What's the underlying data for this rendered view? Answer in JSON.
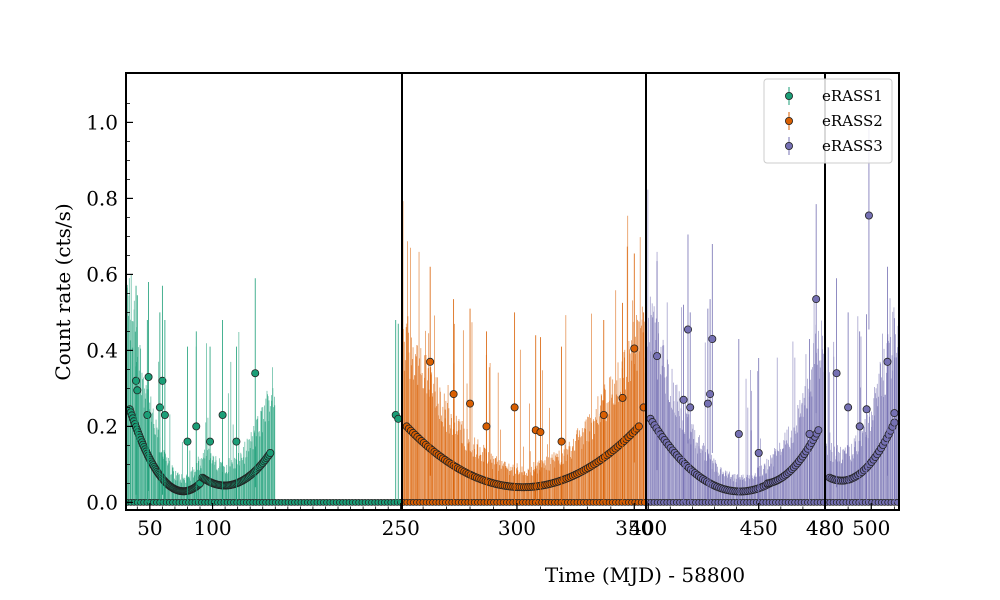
{
  "chart_data": {
    "type": "scatter",
    "xlabel": "Time (MJD) - 58800",
    "ylabel": "Count rate (cts/s)",
    "ylim": [
      -0.02,
      1.13
    ],
    "yticks": [
      0.0,
      0.2,
      0.4,
      0.6,
      0.8,
      1.0
    ],
    "ytick_labels": [
      "0.0",
      "0.2",
      "0.4",
      "0.6",
      "0.8",
      "1.0"
    ],
    "legend_position": "top-right",
    "panels": [
      {
        "series": "eRASS1",
        "xlim": [
          31,
          251
        ],
        "xticks": [
          50,
          100,
          250
        ],
        "xtick_labels": [
          "50",
          "100",
          "250"
        ],
        "color": "#1b9e77",
        "groups": [
          {
            "x_start": 34,
            "x_end": 90,
            "y_start": 0.245,
            "y_mid": 0.055,
            "y_end": 0.05,
            "n": 70
          },
          {
            "x_start": 92,
            "x_end": 146,
            "y_start": 0.065,
            "y_mid": 0.05,
            "y_end": 0.13,
            "n": 55
          }
        ],
        "outliers": [
          {
            "x": 39,
            "y": 0.32
          },
          {
            "x": 40,
            "y": 0.295
          },
          {
            "x": 48,
            "y": 0.23
          },
          {
            "x": 49,
            "y": 0.33
          },
          {
            "x": 58,
            "y": 0.25
          },
          {
            "x": 60,
            "y": 0.32
          },
          {
            "x": 62,
            "y": 0.23
          },
          {
            "x": 80,
            "y": 0.16
          },
          {
            "x": 87,
            "y": 0.2
          },
          {
            "x": 98,
            "y": 0.16
          },
          {
            "x": 108,
            "y": 0.23
          },
          {
            "x": 119,
            "y": 0.16
          },
          {
            "x": 134,
            "y": 0.34
          },
          {
            "x": 246,
            "y": 0.23
          },
          {
            "x": 248,
            "y": 0.22
          }
        ]
      },
      {
        "series": "eRASS2",
        "xlim": [
          251,
          355
        ],
        "xticks": [
          250,
          300,
          350
        ],
        "xtick_labels": [
          "250",
          "300",
          "350"
        ],
        "color": "#d95f02",
        "groups": [
          {
            "x_start": 253,
            "x_end": 352,
            "y_start": 0.2,
            "y_mid": 0.04,
            "y_end": 0.2,
            "n": 110
          }
        ],
        "outliers": [
          {
            "x": 263,
            "y": 0.37
          },
          {
            "x": 273,
            "y": 0.285
          },
          {
            "x": 280,
            "y": 0.26
          },
          {
            "x": 287,
            "y": 0.2
          },
          {
            "x": 299,
            "y": 0.25
          },
          {
            "x": 308,
            "y": 0.19
          },
          {
            "x": 310,
            "y": 0.185
          },
          {
            "x": 319,
            "y": 0.16
          },
          {
            "x": 337,
            "y": 0.23
          },
          {
            "x": 345,
            "y": 0.275
          },
          {
            "x": 350,
            "y": 0.405
          },
          {
            "x": 354,
            "y": 0.25
          }
        ]
      },
      {
        "series": "eRASS3",
        "xlim": [
          399,
          480
        ],
        "xticks": [
          400,
          450,
          480
        ],
        "xtick_labels": [
          "400",
          "450",
          "480"
        ],
        "color": "#7570b3",
        "groups": [
          {
            "x_start": 401,
            "x_end": 455,
            "y_start": 0.22,
            "y_mid": 0.05,
            "y_end": 0.05,
            "n": 60
          },
          {
            "x_start": 454,
            "x_end": 477,
            "y_start": 0.05,
            "y_mid": 0.09,
            "y_end": 0.19,
            "n": 30
          }
        ],
        "outliers": [
          {
            "x": 404,
            "y": 0.385
          },
          {
            "x": 416,
            "y": 0.27
          },
          {
            "x": 418,
            "y": 0.455
          },
          {
            "x": 419,
            "y": 0.25
          },
          {
            "x": 429,
            "y": 0.43
          },
          {
            "x": 428,
            "y": 0.285
          },
          {
            "x": 427,
            "y": 0.26
          },
          {
            "x": 441,
            "y": 0.18
          },
          {
            "x": 450,
            "y": 0.13
          },
          {
            "x": 473,
            "y": 0.18
          },
          {
            "x": 476,
            "y": 0.535
          }
        ]
      },
      {
        "series": "eRASS3",
        "xlim": [
          480,
          512
        ],
        "xticks": [
          480,
          500
        ],
        "xtick_labels": [
          "480",
          "500"
        ],
        "color": "#7570b3",
        "groups": [
          {
            "x_start": 482,
            "x_end": 510,
            "y_start": 0.065,
            "y_mid": 0.08,
            "y_end": 0.21,
            "n": 35
          }
        ],
        "outliers": [
          {
            "x": 485,
            "y": 0.34
          },
          {
            "x": 490,
            "y": 0.25
          },
          {
            "x": 495,
            "y": 0.2
          },
          {
            "x": 498,
            "y": 0.245
          },
          {
            "x": 499,
            "y": 0.755
          },
          {
            "x": 507,
            "y": 0.37
          },
          {
            "x": 510,
            "y": 0.235
          }
        ]
      }
    ],
    "legend": [
      {
        "label": "eRASS1",
        "color": "#1b9e77"
      },
      {
        "label": "eRASS2",
        "color": "#d95f02"
      },
      {
        "label": "eRASS3",
        "color": "#7570b3"
      }
    ]
  }
}
